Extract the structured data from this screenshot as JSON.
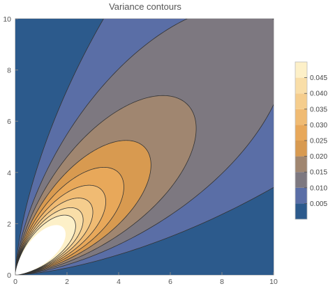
{
  "chart_data": {
    "type": "contour",
    "title": "Variance contours",
    "xlabel": "",
    "ylabel": "",
    "xlim": [
      0,
      10
    ],
    "ylim": [
      0,
      10
    ],
    "x_ticks": [
      0,
      2,
      4,
      6,
      8,
      10
    ],
    "y_ticks": [
      0,
      2,
      4,
      6,
      8,
      10
    ],
    "contour_levels": [
      0.005,
      0.01,
      0.015,
      0.02,
      0.025,
      0.03,
      0.035,
      0.04,
      0.045
    ],
    "colorbar_ticks": [
      "0.005",
      "0.010",
      "0.015",
      "0.020",
      "0.025",
      "0.030",
      "0.035",
      "0.040",
      "0.045"
    ],
    "colorbar_range": [
      0,
      0.05
    ],
    "colorbar_placement": "right",
    "band_colors": [
      "#2c5a8c",
      "#5a6ea6",
      "#7d7880",
      "#a08670",
      "#d89a50",
      "#e8a85a",
      "#f0bb73",
      "#f5cd8d",
      "#f9dea8",
      "#fdf0c8"
    ],
    "unplotted_region_color": "#ffffff",
    "contour_line_color": "#333333",
    "grid": false
  }
}
